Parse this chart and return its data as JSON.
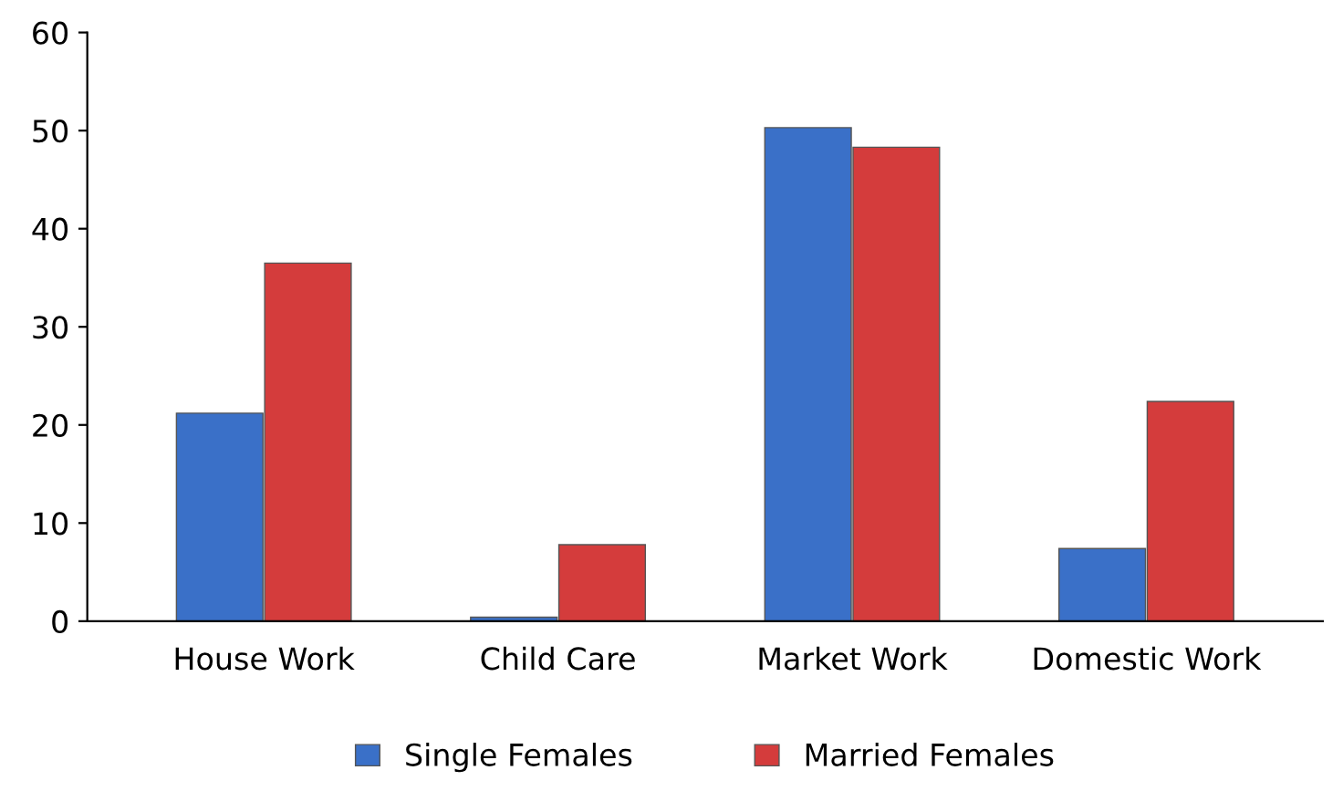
{
  "chart_data": {
    "type": "bar",
    "categories": [
      "House Work",
      "Child Care",
      "Market Work",
      "Domestic Work"
    ],
    "series": [
      {
        "name": "Single Females",
        "color": "#3a70c8",
        "values": [
          21.2,
          0.4,
          50.3,
          7.4
        ]
      },
      {
        "name": "Married Females",
        "color": "#d43c3c",
        "values": [
          36.5,
          7.8,
          48.3,
          22.4
        ]
      }
    ],
    "ylim": [
      0,
      60
    ],
    "yticks": [
      0,
      10,
      20,
      30,
      40,
      50,
      60
    ],
    "grid": false,
    "legend": "bottom"
  }
}
